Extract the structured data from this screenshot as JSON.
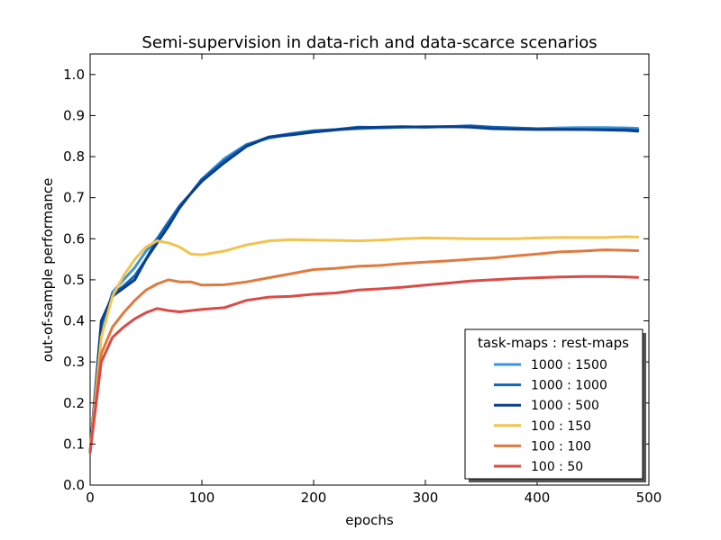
{
  "chart_data": {
    "type": "line",
    "title": "Semi-supervision in data-rich and data-scarce scenarios",
    "xlabel": "epochs",
    "ylabel": "out-of-sample performance",
    "xlim": [
      0,
      500
    ],
    "ylim": [
      0,
      1.05
    ],
    "xticks": [
      0,
      100,
      200,
      300,
      400,
      500
    ],
    "xtick_labels": [
      "0",
      "100",
      "200",
      "300",
      "400",
      "500"
    ],
    "yticks": [
      0,
      0.1,
      0.2,
      0.3,
      0.4,
      0.5,
      0.6,
      0.7,
      0.8,
      0.9,
      1.0
    ],
    "ytick_labels": [
      "0.0",
      "0.1",
      "0.2",
      "0.3",
      "0.4",
      "0.5",
      "0.6",
      "0.7",
      "0.8",
      "0.9",
      "1.0"
    ],
    "grid": false,
    "legend": {
      "title": "task-maps : rest-maps",
      "position": "lower-right"
    },
    "x": [
      0,
      10,
      20,
      30,
      40,
      50,
      60,
      70,
      80,
      90,
      100,
      120,
      140,
      160,
      180,
      200,
      220,
      240,
      260,
      280,
      300,
      320,
      340,
      360,
      380,
      400,
      420,
      440,
      460,
      480,
      490
    ],
    "series": [
      {
        "name": "1000 : 1500",
        "color": "#3a96e0",
        "values": [
          0.08,
          0.37,
          0.47,
          0.5,
          0.53,
          0.57,
          0.6,
          0.64,
          0.68,
          0.71,
          0.745,
          0.795,
          0.83,
          0.845,
          0.855,
          0.862,
          0.866,
          0.868,
          0.87,
          0.872,
          0.872,
          0.873,
          0.874,
          0.87,
          0.869,
          0.868,
          0.87,
          0.871,
          0.871,
          0.87,
          0.869
        ]
      },
      {
        "name": "1000 : 1000",
        "color": "#1366b8",
        "values": [
          0.08,
          0.39,
          0.465,
          0.485,
          0.51,
          0.55,
          0.6,
          0.64,
          0.68,
          0.71,
          0.745,
          0.79,
          0.828,
          0.848,
          0.856,
          0.863,
          0.866,
          0.872,
          0.871,
          0.872,
          0.873,
          0.873,
          0.875,
          0.872,
          0.87,
          0.868,
          0.867,
          0.866,
          0.866,
          0.866,
          0.865
        ]
      },
      {
        "name": "1000 : 500",
        "color": "#0a3f8c",
        "values": [
          0.08,
          0.4,
          0.46,
          0.48,
          0.5,
          0.55,
          0.59,
          0.63,
          0.675,
          0.71,
          0.74,
          0.785,
          0.825,
          0.848,
          0.853,
          0.86,
          0.865,
          0.87,
          0.872,
          0.873,
          0.872,
          0.873,
          0.872,
          0.868,
          0.867,
          0.866,
          0.866,
          0.866,
          0.865,
          0.864,
          0.862
        ]
      },
      {
        "name": "100 : 150",
        "color": "#f2c44f",
        "values": [
          0.08,
          0.36,
          0.46,
          0.51,
          0.55,
          0.58,
          0.595,
          0.59,
          0.58,
          0.563,
          0.561,
          0.57,
          0.585,
          0.595,
          0.598,
          0.597,
          0.596,
          0.595,
          0.597,
          0.6,
          0.602,
          0.601,
          0.6,
          0.6,
          0.6,
          0.602,
          0.603,
          0.603,
          0.603,
          0.605,
          0.604
        ]
      },
      {
        "name": "100 : 100",
        "color": "#e07a3e",
        "values": [
          0.08,
          0.32,
          0.385,
          0.42,
          0.45,
          0.475,
          0.49,
          0.5,
          0.495,
          0.495,
          0.487,
          0.488,
          0.495,
          0.505,
          0.515,
          0.525,
          0.528,
          0.533,
          0.535,
          0.54,
          0.543,
          0.546,
          0.55,
          0.553,
          0.558,
          0.563,
          0.568,
          0.57,
          0.573,
          0.572,
          0.571
        ]
      },
      {
        "name": "100 : 50",
        "color": "#dc4a45",
        "values": [
          0.08,
          0.3,
          0.36,
          0.385,
          0.405,
          0.42,
          0.43,
          0.425,
          0.422,
          0.425,
          0.428,
          0.432,
          0.45,
          0.458,
          0.46,
          0.465,
          0.468,
          0.475,
          0.478,
          0.482,
          0.487,
          0.492,
          0.497,
          0.5,
          0.503,
          0.505,
          0.507,
          0.508,
          0.508,
          0.507,
          0.506
        ]
      }
    ]
  }
}
